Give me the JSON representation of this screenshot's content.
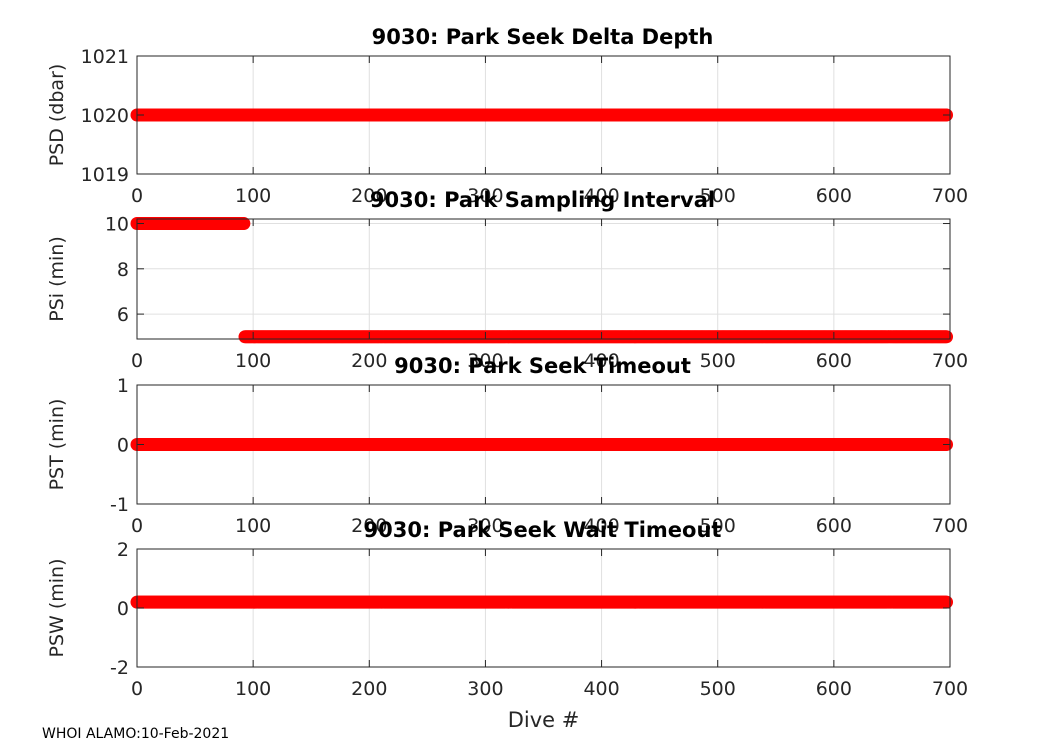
{
  "footer": "WHOI ALAMO:10-Feb-2021",
  "colors": {
    "marker": "#ff0000",
    "grid": "#e0e0e0",
    "axis": "#262626"
  },
  "chart_data": [
    {
      "type": "scatter",
      "title": "9030: Park Seek Delta Depth",
      "xlabel": "",
      "ylabel": "PSD (dbar)",
      "xlim": [
        0,
        700
      ],
      "ylim": [
        1019,
        1021
      ],
      "xticks": [
        "0",
        "100",
        "200",
        "300",
        "400",
        "500",
        "600",
        "700"
      ],
      "yticks": [
        "1019",
        "1020",
        "1021"
      ],
      "series": [
        {
          "x_range": [
            0,
            697
          ],
          "y": 1020
        }
      ]
    },
    {
      "type": "scatter",
      "title": "9030: Park Sampling Interval",
      "xlabel": "",
      "ylabel": "PSi (min)",
      "xlim": [
        0,
        700
      ],
      "ylim": [
        4.9,
        10.2
      ],
      "xticks": [
        "0",
        "100",
        "200",
        "300",
        "400",
        "500",
        "600",
        "700"
      ],
      "yticks": [
        "6",
        "8",
        "10"
      ],
      "series": [
        {
          "x_range": [
            0,
            92
          ],
          "y": 10
        },
        {
          "x_range": [
            93,
            697
          ],
          "y": 5
        }
      ]
    },
    {
      "type": "scatter",
      "title": "9030: Park Seek Timeout",
      "xlabel": "",
      "ylabel": "PST (min)",
      "xlim": [
        0,
        700
      ],
      "ylim": [
        -1,
        1
      ],
      "xticks": [
        "0",
        "100",
        "200",
        "300",
        "400",
        "500",
        "600",
        "700"
      ],
      "yticks": [
        "-1",
        "0",
        "1"
      ],
      "series": [
        {
          "x_range": [
            0,
            697
          ],
          "y": 0
        }
      ]
    },
    {
      "type": "scatter",
      "title": "9030: Park Seek Wait Timeout",
      "xlabel": "Dive #",
      "ylabel": "PSW (min)",
      "xlim": [
        0,
        700
      ],
      "ylim": [
        -2,
        2
      ],
      "xticks": [
        "0",
        "100",
        "200",
        "300",
        "400",
        "500",
        "600",
        "700"
      ],
      "yticks": [
        "-2",
        "0",
        "2"
      ],
      "series": [
        {
          "x_range": [
            0,
            697
          ],
          "y": 0.2
        }
      ]
    }
  ]
}
